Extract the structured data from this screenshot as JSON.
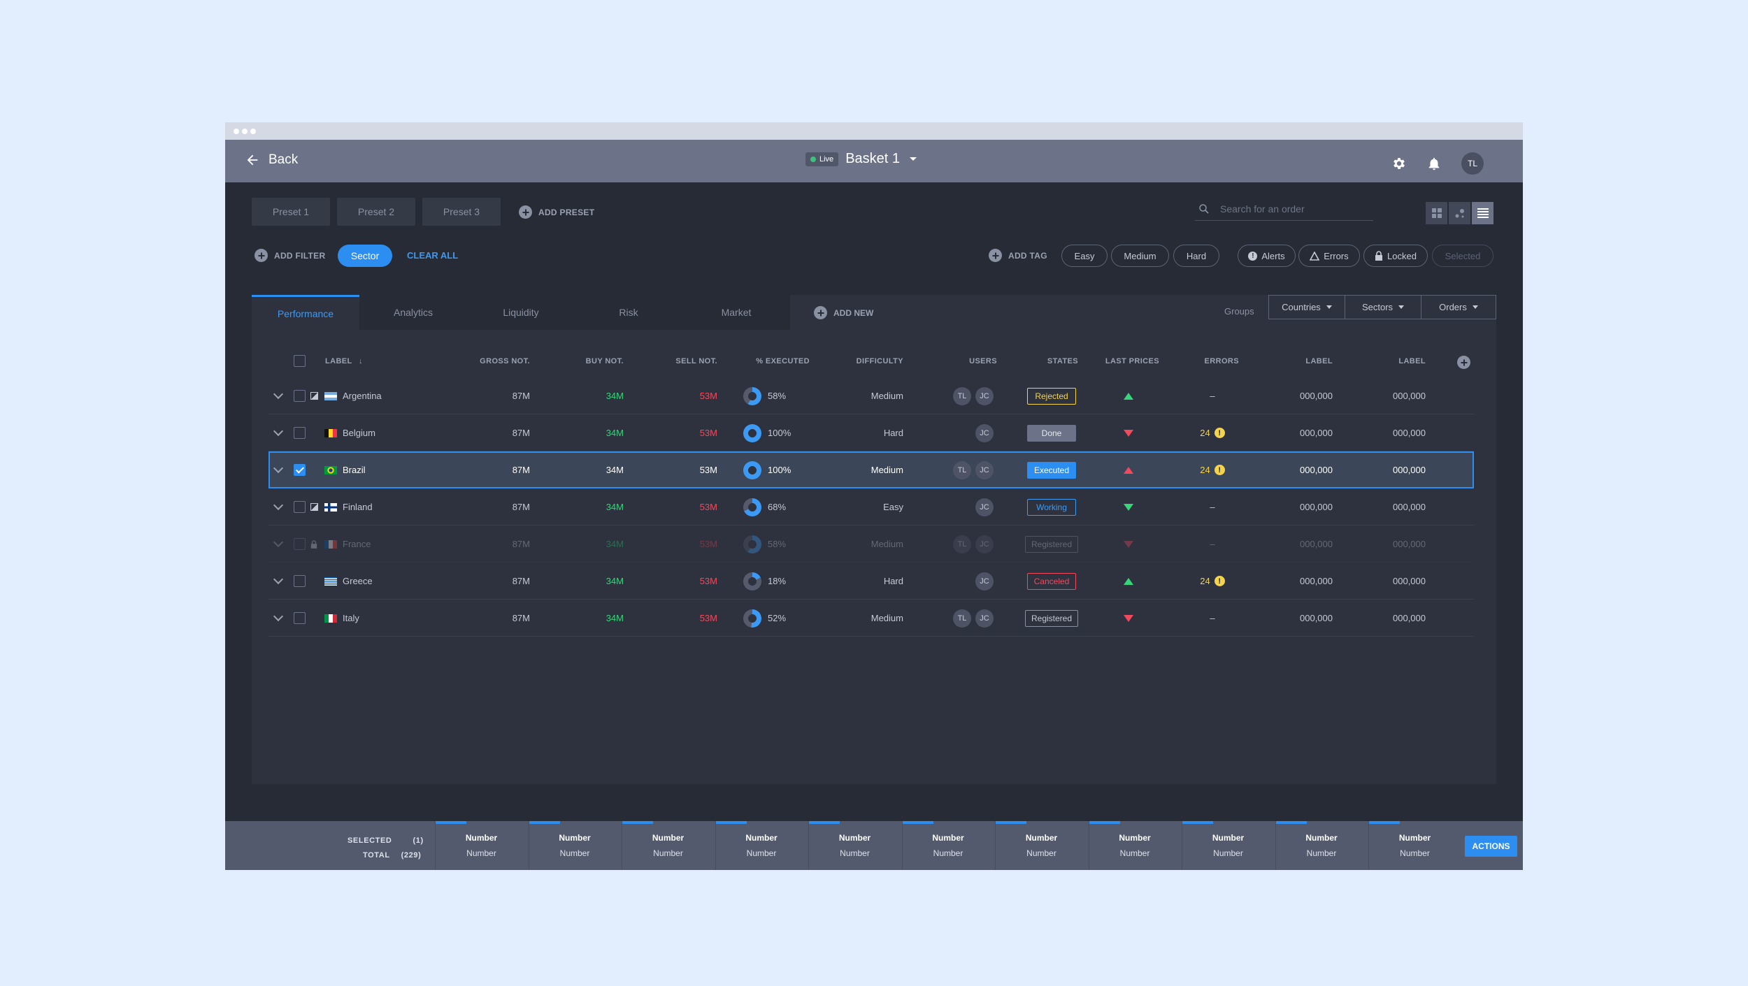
{
  "header": {
    "back_label": "Back",
    "live_label": "Live",
    "basket": "Basket 1",
    "avatar": "TL"
  },
  "presets": [
    "Preset 1",
    "Preset 2",
    "Preset 3"
  ],
  "add_preset": "ADD PRESET",
  "search": {
    "placeholder": "Search for an order"
  },
  "filters": {
    "add_filter": "ADD FILTER",
    "active": "Sector",
    "clear": "CLEAR ALL",
    "add_tag": "ADD TAG",
    "tags": [
      "Easy",
      "Medium",
      "Hard"
    ],
    "status_tags": [
      "Alerts",
      "Errors",
      "Locked",
      "Selected"
    ]
  },
  "tabs": [
    "Performance",
    "Analytics",
    "Liquidity",
    "Risk",
    "Market"
  ],
  "add_new": "ADD NEW",
  "groups": {
    "label": "Groups",
    "items": [
      "Countries",
      "Sectors",
      "Orders"
    ]
  },
  "columns": [
    "LABEL",
    "GROSS NOT.",
    "BUY NOT.",
    "SELL NOT.",
    "% EXECUTED",
    "DIFFICULTY",
    "USERS",
    "STATES",
    "LAST PRICES",
    "ERRORS",
    "LABEL",
    "LABEL"
  ],
  "rows": [
    {
      "country": "Argentina",
      "gross": "87M",
      "buy": "34M",
      "sell": "53M",
      "executed": "58%",
      "exec_frac": 0.58,
      "difficulty": "Medium",
      "users": [
        "TL",
        "JC"
      ],
      "state": "Rejected",
      "price": "up",
      "errors": "–",
      "l1": "000,000",
      "l2": "000,000"
    },
    {
      "country": "Belgium",
      "gross": "87M",
      "buy": "34M",
      "sell": "53M",
      "executed": "100%",
      "exec_frac": 1.0,
      "difficulty": "Hard",
      "users": [
        "JC"
      ],
      "state": "Done",
      "price": "down",
      "errors": "24",
      "l1": "000,000",
      "l2": "000,000"
    },
    {
      "country": "Brazil",
      "gross": "87M",
      "buy": "34M",
      "sell": "53M",
      "executed": "100%",
      "exec_frac": 1.0,
      "difficulty": "Medium",
      "users": [
        "TL",
        "JC"
      ],
      "state": "Executed",
      "price": "up",
      "errors": "24",
      "l1": "000,000",
      "l2": "000,000"
    },
    {
      "country": "Finland",
      "gross": "87M",
      "buy": "34M",
      "sell": "53M",
      "executed": "68%",
      "exec_frac": 0.68,
      "difficulty": "Easy",
      "users": [
        "JC"
      ],
      "state": "Working",
      "price": "down",
      "errors": "–",
      "l1": "000,000",
      "l2": "000,000"
    },
    {
      "country": "France",
      "gross": "87M",
      "buy": "34M",
      "sell": "53M",
      "executed": "58%",
      "exec_frac": 0.58,
      "difficulty": "Medium",
      "users": [
        "TL",
        "JC"
      ],
      "state": "Registered",
      "price": "down",
      "errors": "–",
      "l1": "000,000",
      "l2": "000,000"
    },
    {
      "country": "Greece",
      "gross": "87M",
      "buy": "34M",
      "sell": "53M",
      "executed": "18%",
      "exec_frac": 0.18,
      "difficulty": "Hard",
      "users": [
        "JC"
      ],
      "state": "Canceled",
      "price": "up",
      "errors": "24",
      "l1": "000,000",
      "l2": "000,000"
    },
    {
      "country": "Italy",
      "gross": "87M",
      "buy": "34M",
      "sell": "53M",
      "executed": "52%",
      "exec_frac": 0.52,
      "difficulty": "Medium",
      "users": [
        "TL",
        "JC"
      ],
      "state": "Registered",
      "price": "down",
      "errors": "–",
      "l1": "000,000",
      "l2": "000,000"
    }
  ],
  "footer": {
    "selected_label": "SELECTED",
    "selected_count": "(1)",
    "total_label": "TOTAL",
    "total_count": "(229)",
    "col_top": "Number",
    "col_bottom": "Number",
    "actions": "ACTIONS"
  },
  "colors": {
    "accent": "#2b8ef0",
    "green": "#37d67a",
    "red": "#f2495c",
    "warning": "#f5d34b"
  }
}
